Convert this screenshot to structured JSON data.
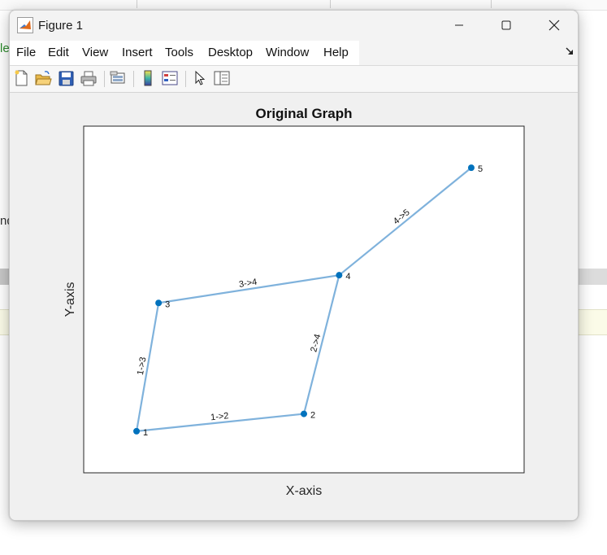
{
  "window": {
    "title": "Figure 1",
    "app_icon": "matlab-logo-icon",
    "controls": [
      "minimize-icon",
      "maximize-icon",
      "close-icon"
    ]
  },
  "background": {
    "fragment_left_top": "le",
    "fragment_left_mid": "nd"
  },
  "menu": {
    "items": [
      "File",
      "Edit",
      "View",
      "Insert",
      "Tools",
      "Desktop",
      "Window",
      "Help"
    ],
    "dock_icon": "dock-arrow-icon"
  },
  "toolbar": {
    "buttons": [
      {
        "name": "new-figure",
        "icon": "new-file-icon"
      },
      {
        "name": "open-file",
        "icon": "open-folder-icon"
      },
      {
        "name": "save-figure",
        "icon": "save-disk-icon"
      },
      {
        "name": "print-figure",
        "icon": "printer-icon"
      },
      {
        "name": "link-plot",
        "icon": "link-plot-icon"
      },
      {
        "name": "insert-colorbar",
        "icon": "colorbar-icon"
      },
      {
        "name": "insert-legend",
        "icon": "legend-icon"
      },
      {
        "name": "edit-plot",
        "icon": "pointer-arrow-icon"
      },
      {
        "name": "property-inspector",
        "icon": "property-inspector-icon"
      }
    ]
  },
  "chart_data": {
    "type": "graph",
    "title": "Original Graph",
    "xlabel": "X-axis",
    "ylabel": "Y-axis",
    "nodes": [
      {
        "id": "1",
        "x": 0.12,
        "y": 0.12
      },
      {
        "id": "2",
        "x": 0.5,
        "y": 0.17
      },
      {
        "id": "3",
        "x": 0.17,
        "y": 0.49
      },
      {
        "id": "4",
        "x": 0.58,
        "y": 0.57
      },
      {
        "id": "5",
        "x": 0.88,
        "y": 0.88
      }
    ],
    "edges": [
      {
        "source": "1",
        "target": "2",
        "label": "1->2"
      },
      {
        "source": "1",
        "target": "3",
        "label": "1->3"
      },
      {
        "source": "2",
        "target": "4",
        "label": "2->4"
      },
      {
        "source": "3",
        "target": "4",
        "label": "3->4"
      },
      {
        "source": "4",
        "target": "5",
        "label": "4->5"
      }
    ],
    "xlim": [
      0,
      1
    ],
    "ylim": [
      0,
      1
    ],
    "axis_ticks_visible": false,
    "grid": false,
    "node_color": "#0072BD",
    "edge_color": "#7FB2DC"
  }
}
